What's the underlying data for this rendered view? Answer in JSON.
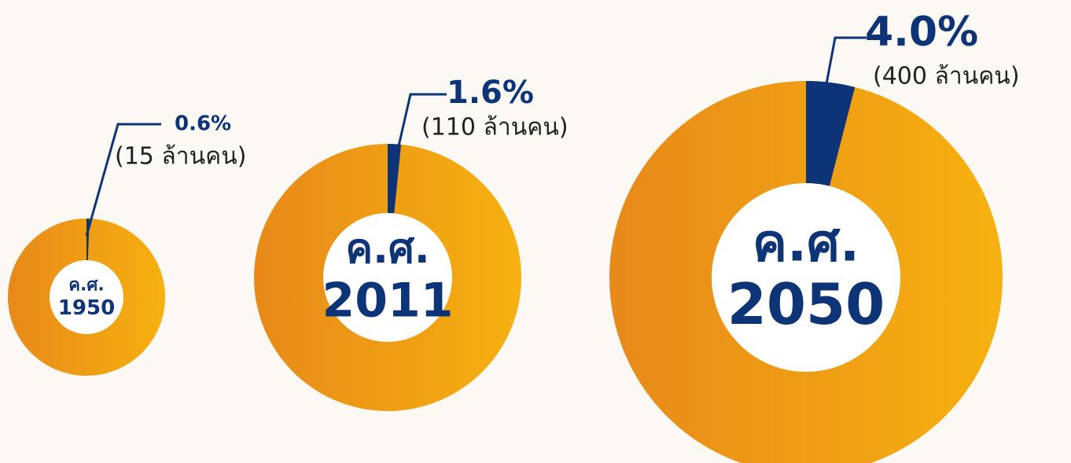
{
  "chart_data": [
    {
      "type": "donut",
      "center_label": [
        "ค.ศ.",
        "1950"
      ],
      "values": [
        0.6
      ],
      "value_labels": [
        "0.6%"
      ],
      "annotation": "(15 ล้านคน)",
      "color": "#0e3478",
      "ring_colors": [
        "#e8891a",
        "#f6b10f"
      ]
    },
    {
      "type": "donut",
      "center_label": [
        "ค.ศ.",
        "2011"
      ],
      "values": [
        1.6
      ],
      "value_labels": [
        "1.6%"
      ],
      "annotation": "(110 ล้านคน)",
      "color": "#0e3478",
      "ring_colors": [
        "#e8891a",
        "#f6b10f"
      ]
    },
    {
      "type": "donut",
      "center_label": [
        "ค.ศ.",
        "2050"
      ],
      "values": [
        4.0
      ],
      "value_labels": [
        "4.0%"
      ],
      "annotation": "(400 ล้านคน)",
      "color": "#0e3478",
      "ring_colors": [
        "#e8891a",
        "#f6b10f"
      ]
    }
  ]
}
